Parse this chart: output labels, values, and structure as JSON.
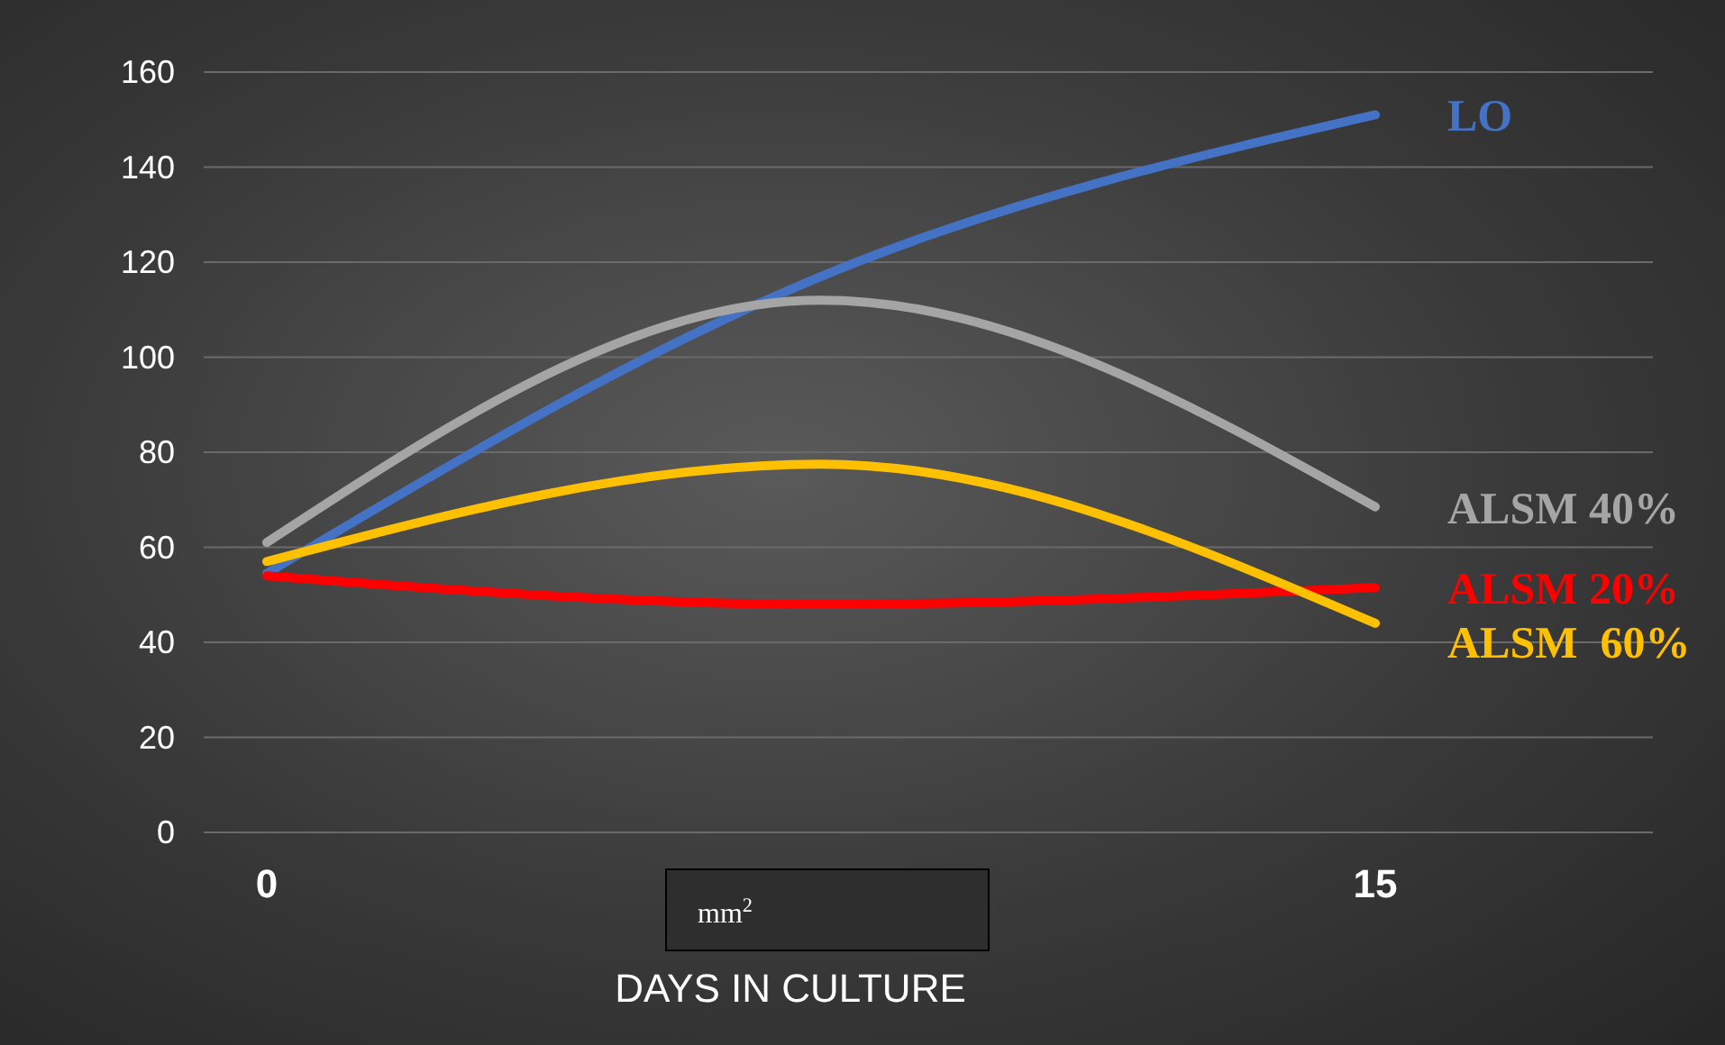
{
  "chart_data": {
    "type": "line",
    "xlabel": "DAYS IN CULTURE",
    "categories": [
      "0",
      null,
      "15"
    ],
    "series": [
      {
        "name": "LO",
        "color": "#4472c4",
        "values": [
          54.5,
          117,
          151
        ]
      },
      {
        "name": "ALSM 40%",
        "color": "#a5a5a5",
        "values": [
          61,
          112,
          68.5
        ]
      },
      {
        "name": "ALSM 20%",
        "color": "#ff0000",
        "values": [
          54,
          48,
          51.5
        ]
      },
      {
        "name": "ALSM  60%",
        "color": "#ffc000",
        "values": [
          57,
          77.5,
          44
        ]
      }
    ],
    "ylim": [
      0,
      160
    ],
    "yticks": [
      0,
      20,
      40,
      60,
      80,
      100,
      120,
      140,
      160
    ],
    "grid": "y",
    "marker": "none",
    "line_style": "solid",
    "annotations": [
      "mm$^{2}$"
    ]
  }
}
